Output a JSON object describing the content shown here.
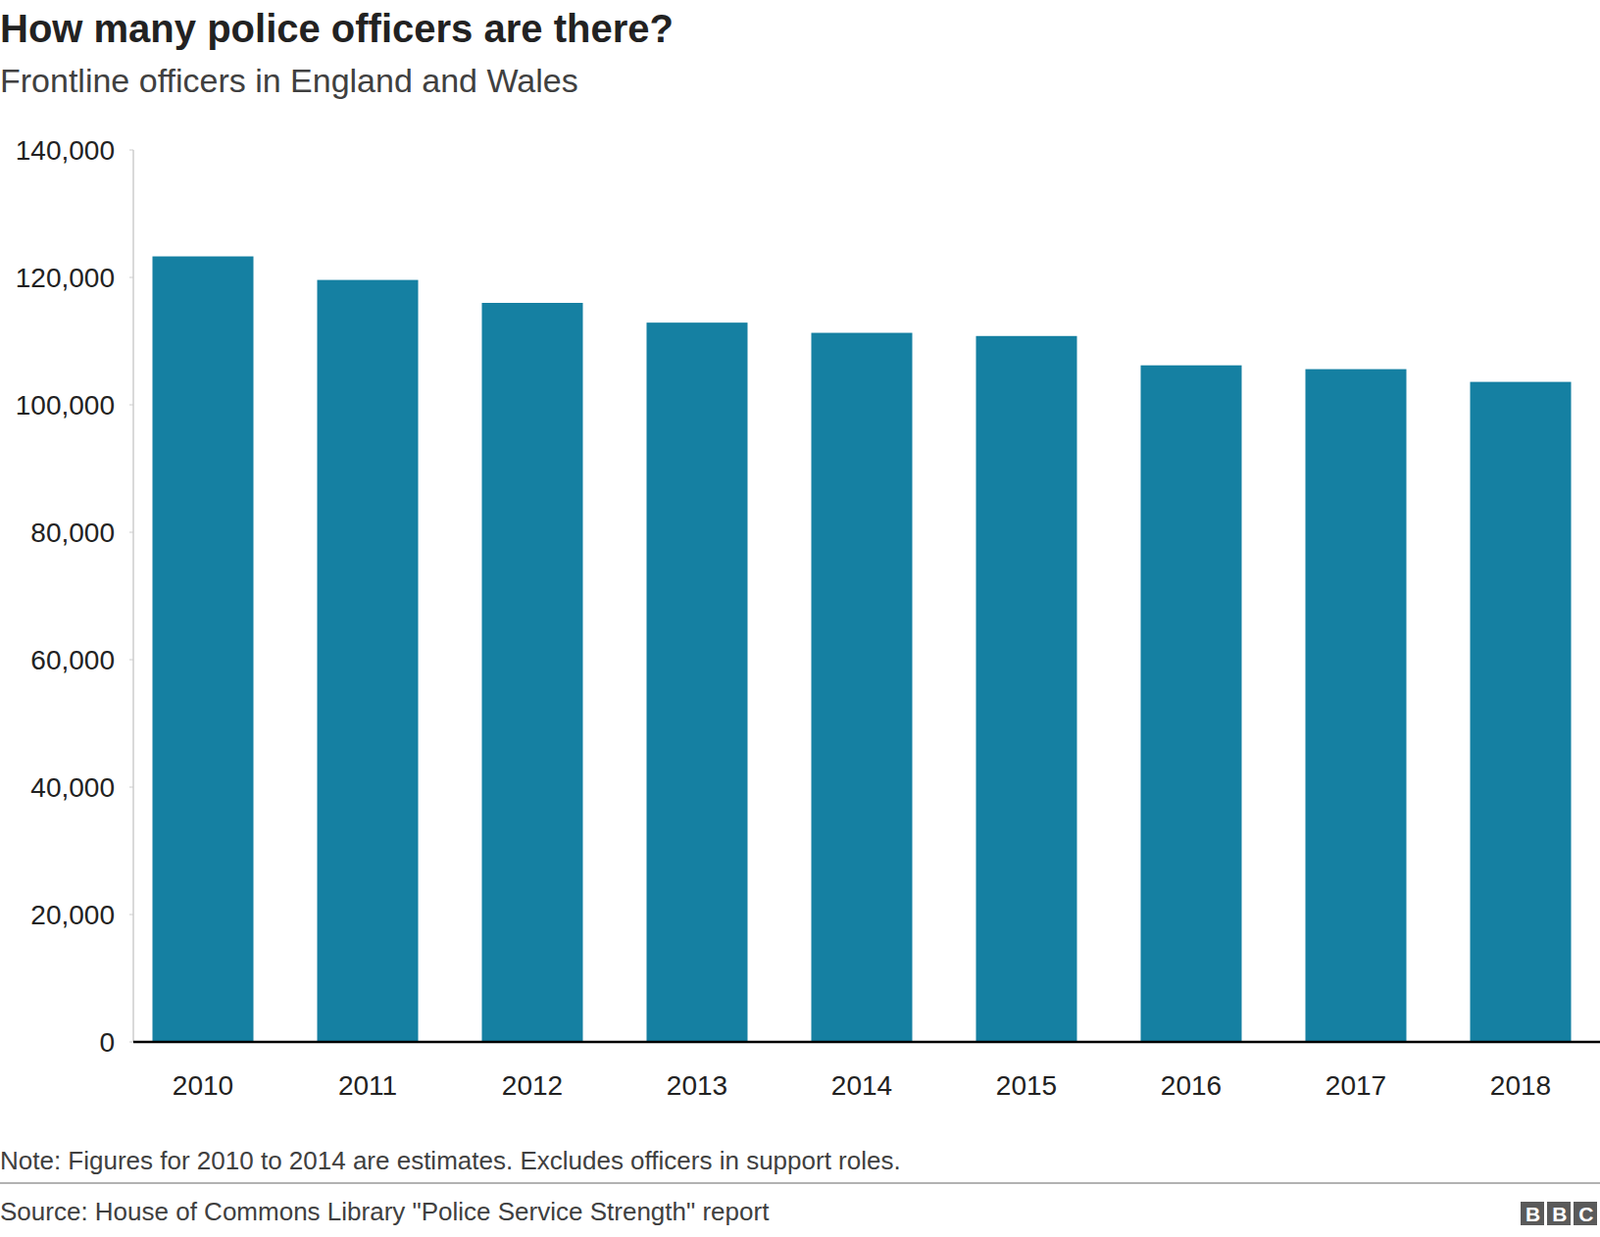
{
  "chart_data": {
    "type": "bar",
    "title": "How many police officers are there?",
    "subtitle": "Frontline officers in England and Wales",
    "note": "Note: Figures for 2010 to 2014 are estimates. Excludes officers in support roles.",
    "source": "Source: House of Commons Library \"Police Service Strength\" report",
    "logo": "BBC",
    "categories": [
      "2010",
      "2011",
      "2012",
      "2013",
      "2014",
      "2015",
      "2016",
      "2017",
      "2018"
    ],
    "values": [
      123300,
      119600,
      116000,
      112900,
      111300,
      110800,
      106200,
      105600,
      103600
    ],
    "color": "#1580a2",
    "ylim": [
      0,
      140000
    ],
    "yticks": [
      0,
      {
        "value": 20000,
        "label": "20,000"
      },
      {
        "value": 40000,
        "label": "40,000"
      },
      {
        "value": 60000,
        "label": "60,000"
      },
      {
        "value": 80000,
        "label": "80,000"
      },
      {
        "value": 100000,
        "label": "100,000"
      },
      {
        "value": 120000,
        "label": "120,000"
      },
      {
        "value": 140000,
        "label": "140,000"
      }
    ],
    "grid": false
  }
}
